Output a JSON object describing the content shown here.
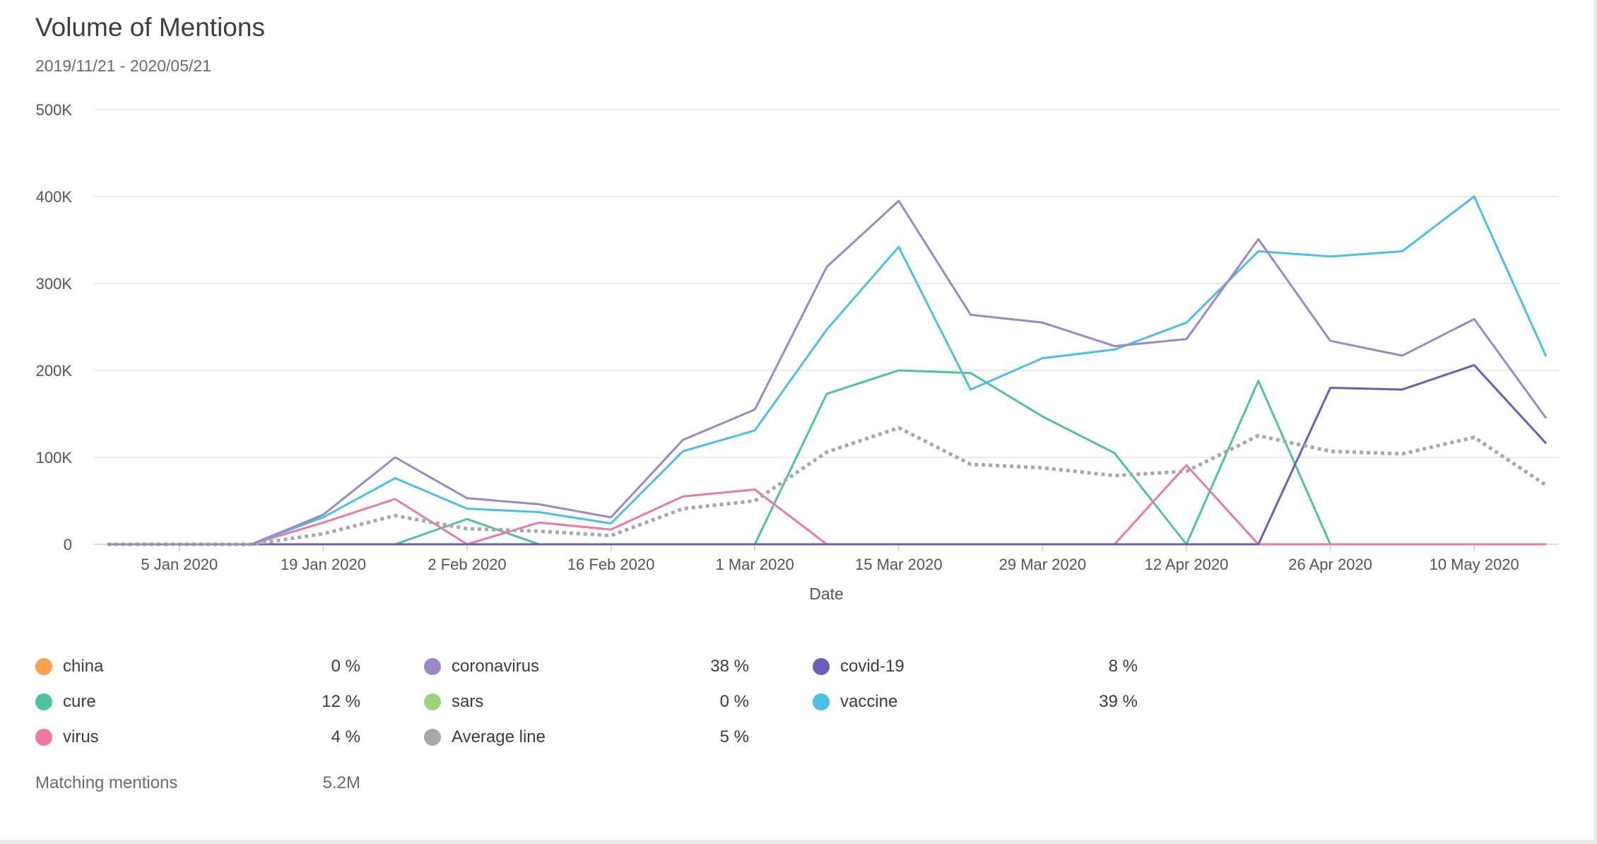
{
  "header": {
    "title": "Volume of Mentions",
    "date_range": "2019/11/21 - 2020/05/21"
  },
  "colors": {
    "china": "#f5a24b",
    "coronavirus": "#9b89c4",
    "covid-19": "#6a5fba",
    "cure": "#4ec3a1",
    "sars": "#9cd47c",
    "vaccine": "#4bbfe6",
    "virus": "#ee78a4",
    "average": "#a8a8a8"
  },
  "legend": {
    "items": [
      {
        "key": "china",
        "label": "china",
        "pct": "0 %"
      },
      {
        "key": "coronavirus",
        "label": "coronavirus",
        "pct": "38 %"
      },
      {
        "key": "covid-19",
        "label": "covid-19",
        "pct": "8 %"
      },
      {
        "key": "cure",
        "label": "cure",
        "pct": "12 %"
      },
      {
        "key": "sars",
        "label": "sars",
        "pct": "0 %"
      },
      {
        "key": "vaccine",
        "label": "vaccine",
        "pct": "39 %"
      },
      {
        "key": "virus",
        "label": "virus",
        "pct": "4 %"
      },
      {
        "key": "average",
        "label": "Average line",
        "pct": "5 %"
      }
    ]
  },
  "footer": {
    "matching_label": "Matching mentions",
    "matching_value": "5.2M"
  },
  "chart_data": {
    "type": "line",
    "xlabel": "Date",
    "ylabel": "",
    "ylim": [
      0,
      500000
    ],
    "yticks": [
      0,
      100000,
      200000,
      300000,
      400000,
      500000
    ],
    "ytick_labels": [
      "0",
      "100K",
      "200K",
      "300K",
      "400K",
      "500K"
    ],
    "xticks": [
      "2020-01-05",
      "2020-01-19",
      "2020-02-02",
      "2020-02-16",
      "2020-03-01",
      "2020-03-15",
      "2020-03-29",
      "2020-04-12",
      "2020-04-26",
      "2020-05-10"
    ],
    "xtick_labels": [
      "5 Jan 2020",
      "19 Jan 2020",
      "2 Feb 2020",
      "16 Feb 2020",
      "1 Mar 2020",
      "15 Mar 2020",
      "29 Mar 2020",
      "12 Apr 2020",
      "26 Apr 2020",
      "10 May 2020"
    ],
    "x": [
      "2019-12-29",
      "2020-01-05",
      "2020-01-12",
      "2020-01-19",
      "2020-01-26",
      "2020-02-02",
      "2020-02-09",
      "2020-02-16",
      "2020-02-23",
      "2020-03-01",
      "2020-03-08",
      "2020-03-15",
      "2020-03-22",
      "2020-03-29",
      "2020-04-05",
      "2020-04-12",
      "2020-04-19",
      "2020-04-26",
      "2020-05-03",
      "2020-05-10",
      "2020-05-17"
    ],
    "grid": true,
    "legend_position": "bottom",
    "series": [
      {
        "name": "china",
        "color_key": "china",
        "dashed": false,
        "values": [
          0,
          0,
          0,
          0,
          0,
          0,
          0,
          0,
          0,
          0,
          0,
          0,
          0,
          0,
          0,
          0,
          0,
          0,
          0,
          0,
          0
        ]
      },
      {
        "name": "sars",
        "color_key": "sars",
        "dashed": false,
        "values": [
          0,
          0,
          0,
          0,
          0,
          0,
          0,
          0,
          0,
          0,
          0,
          0,
          0,
          0,
          0,
          0,
          0,
          0,
          0,
          0,
          0
        ]
      },
      {
        "name": "cure",
        "color_key": "cure",
        "dashed": false,
        "values": [
          0,
          0,
          0,
          0,
          0,
          29000,
          0,
          0,
          0,
          0,
          173000,
          200000,
          197000,
          147000,
          105000,
          0,
          188000,
          0,
          0,
          0,
          0
        ]
      },
      {
        "name": "virus",
        "color_key": "virus",
        "dashed": false,
        "values": [
          0,
          0,
          0,
          25000,
          52000,
          0,
          25000,
          17000,
          55000,
          63000,
          0,
          0,
          0,
          0,
          0,
          91000,
          0,
          0,
          0,
          0,
          0
        ]
      },
      {
        "name": "covid-19",
        "color_key": "covid-19",
        "dashed": false,
        "values": [
          0,
          0,
          0,
          0,
          0,
          0,
          0,
          0,
          0,
          0,
          0,
          0,
          0,
          0,
          0,
          0,
          0,
          180000,
          178000,
          206000,
          116000
        ]
      },
      {
        "name": "Average line",
        "color_key": "average",
        "dashed": true,
        "values": [
          0,
          0,
          0,
          12000,
          33000,
          18000,
          15000,
          10000,
          41000,
          50000,
          106000,
          134000,
          92000,
          88000,
          79000,
          84000,
          125000,
          107000,
          104000,
          123000,
          68000
        ]
      },
      {
        "name": "vaccine",
        "color_key": "vaccine",
        "dashed": false,
        "values": [
          0,
          0,
          0,
          31000,
          76000,
          41000,
          37000,
          24000,
          107000,
          131000,
          247000,
          342000,
          178000,
          214000,
          224000,
          255000,
          337000,
          331000,
          337000,
          400000,
          216000
        ]
      },
      {
        "name": "coronavirus",
        "color_key": "coronavirus",
        "dashed": false,
        "values": [
          0,
          0,
          0,
          34000,
          100000,
          53000,
          46000,
          31000,
          120000,
          155000,
          319000,
          395000,
          264000,
          255000,
          228000,
          236000,
          351000,
          234000,
          217000,
          259000,
          145000
        ]
      }
    ]
  }
}
